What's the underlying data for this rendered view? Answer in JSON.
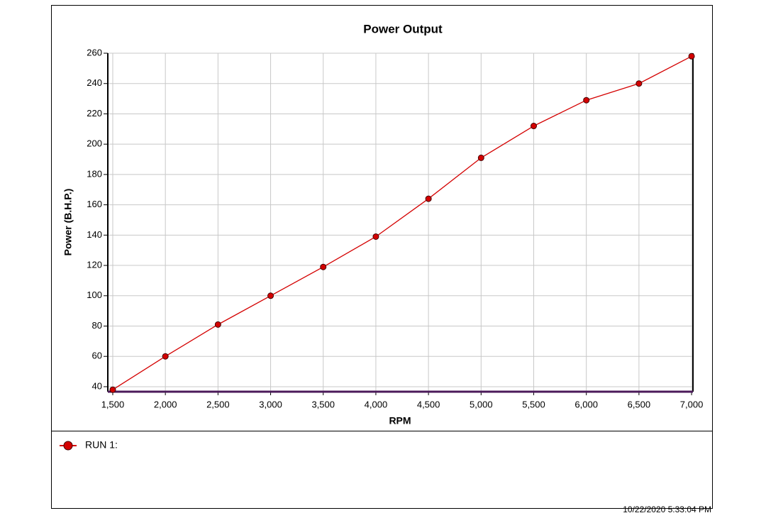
{
  "chart_data": {
    "type": "line",
    "title": "Power Output",
    "x_label": "RPM",
    "y_label": "Power (B.H.P.)",
    "x": [
      1500,
      2000,
      2500,
      3000,
      3500,
      4000,
      4500,
      5000,
      5500,
      6000,
      6500,
      7000
    ],
    "series": [
      {
        "name": "RUN 1:",
        "color": "#d40000",
        "values": [
          38,
          60,
          81,
          100,
          119,
          139,
          164,
          191,
          212,
          229,
          240,
          258
        ]
      }
    ],
    "xlim": [
      1453,
      7013
    ],
    "xticks": [
      {
        "value": 1500,
        "label": "1,500"
      },
      {
        "value": 2000,
        "label": "2,000"
      },
      {
        "value": 2500,
        "label": "2,500"
      },
      {
        "value": 3000,
        "label": "3,000"
      },
      {
        "value": 3500,
        "label": "3,500"
      },
      {
        "value": 4000,
        "label": "4,000"
      },
      {
        "value": 4500,
        "label": "4,500"
      },
      {
        "value": 5000,
        "label": "5,000"
      },
      {
        "value": 5500,
        "label": "5,500"
      },
      {
        "value": 6000,
        "label": "6,000"
      },
      {
        "value": 6500,
        "label": "6,500"
      },
      {
        "value": 7000,
        "label": "7,000"
      }
    ],
    "ylim": [
      36.7,
      260
    ],
    "yticks": [
      40,
      60,
      80,
      100,
      120,
      140,
      160,
      180,
      200,
      220,
      240,
      260
    ],
    "grid": true,
    "legend": "bottom",
    "timestamp": "10/22/2020 5:33:04 PM"
  }
}
